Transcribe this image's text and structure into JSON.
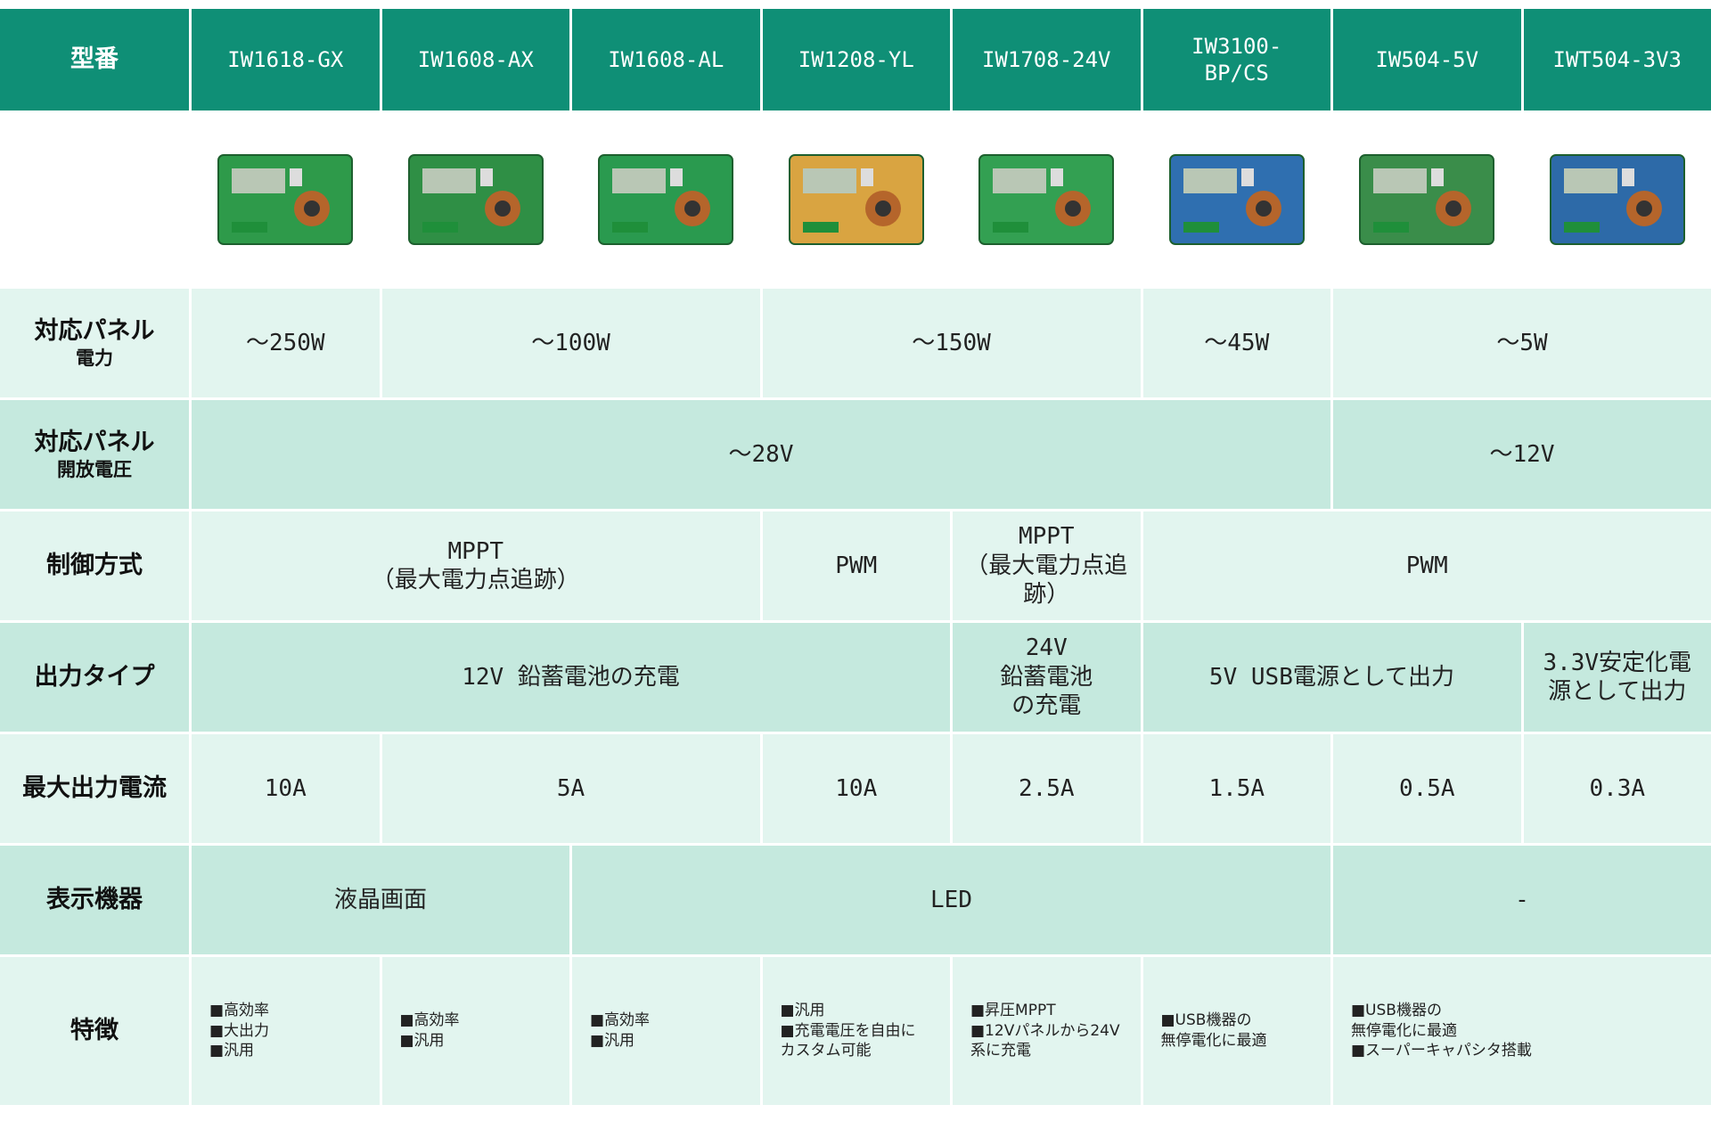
{
  "header": {
    "label": "型番",
    "models": [
      [
        "IW1618-GX"
      ],
      [
        "IW1608-AX"
      ],
      [
        "IW1608-AL"
      ],
      [
        "IW1208-YL"
      ],
      [
        "IW1708-24V"
      ],
      [
        "IW3100-",
        "BP/CS"
      ],
      [
        "IW504-5V"
      ],
      [
        "IWT504-3V3"
      ]
    ]
  },
  "rows": [
    {
      "label": [
        "対応パネル",
        "電力"
      ],
      "cells": [
        [
          "～250W"
        ],
        [
          "～100W"
        ],
        [
          "～150W"
        ],
        [
          "～45W"
        ],
        [
          "～5W"
        ]
      ]
    },
    {
      "label": [
        "対応パネル",
        "開放電圧"
      ],
      "cells": [
        [
          "～28V"
        ],
        [
          "～12V"
        ]
      ]
    },
    {
      "label": [
        "制御方式"
      ],
      "cells": [
        [
          "MPPT",
          "（最大電力点追跡）"
        ],
        [
          "PWM"
        ],
        [
          "MPPT",
          "（最大電力点追跡）"
        ],
        [
          "PWM"
        ]
      ]
    },
    {
      "label": [
        "出力タイプ"
      ],
      "cells": [
        [
          "12V 鉛蓄電池の充電"
        ],
        [
          "24V",
          "鉛蓄電池",
          "の充電"
        ],
        [
          "5V USB電源として出力"
        ],
        [
          "3.3V安定化電",
          "源として出力"
        ]
      ]
    },
    {
      "label": [
        "最大出力電流"
      ],
      "cells": [
        [
          "10A"
        ],
        [
          "5A"
        ],
        [
          "10A"
        ],
        [
          "2.5A"
        ],
        [
          "1.5A"
        ],
        [
          "0.5A"
        ],
        [
          "0.3A"
        ]
      ]
    },
    {
      "label": [
        "表示機器"
      ],
      "cells": [
        [
          "液晶画面"
        ],
        [
          "LED"
        ],
        [
          "-"
        ]
      ]
    },
    {
      "label": [
        "特徴"
      ],
      "cells": [
        [
          "■高効率",
          "■大出力",
          "■汎用"
        ],
        [
          "■高効率",
          "■汎用"
        ],
        [
          "■高効率",
          "■汎用"
        ],
        [
          "■汎用",
          "■充電電圧を自由に",
          "カスタム可能"
        ],
        [
          "■昇圧MPPT",
          "■12Vパネルから24V",
          "系に充電"
        ],
        [
          "■USB機器の",
          "無停電化に最適"
        ],
        [
          "■USB機器の",
          "無停電化に最適",
          "■スーパーキャパシタ搭載"
        ]
      ]
    }
  ]
}
